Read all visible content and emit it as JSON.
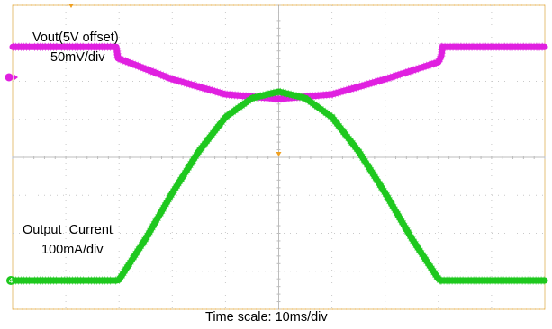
{
  "chart_data": {
    "type": "line",
    "xlabel": "Time scale: 10ms/div",
    "x_unit_per_div": "10ms/div",
    "x_divisions": 10,
    "xlim": [
      0,
      100
    ],
    "grid": true,
    "series": [
      {
        "name": "Vout(5V offset)",
        "scale_label": "50mV/div",
        "color": "#e020e0",
        "y_unit": "divisions",
        "x": [
          0,
          19.5,
          19.8,
          30,
          40,
          50,
          60,
          70,
          80,
          80.5,
          80.8,
          100
        ],
        "y": [
          6.15,
          6.15,
          5.85,
          5.3,
          4.9,
          4.78,
          4.9,
          5.3,
          5.75,
          5.9,
          6.15,
          6.15
        ]
      },
      {
        "name": "Output  Current",
        "scale_label": "100mA/div",
        "color": "#1ec81e",
        "y_unit": "divisions",
        "x": [
          0,
          19.5,
          20,
          25,
          30,
          35,
          40,
          45,
          50,
          55,
          60,
          65,
          70,
          75,
          80,
          80.5,
          100
        ],
        "y": [
          0,
          0,
          0.02,
          1.1,
          2.3,
          3.4,
          4.3,
          4.8,
          4.97,
          4.8,
          4.3,
          3.4,
          2.3,
          1.1,
          0.04,
          0,
          0
        ]
      }
    ],
    "channel_markers": {
      "ch1_color": "#e020e0",
      "ch1_level_div": 5.35,
      "ch2_color": "#1ec81e",
      "ch2_level_div": 0,
      "ch2_label": "4",
      "trigger_color": "#f0a020"
    }
  }
}
